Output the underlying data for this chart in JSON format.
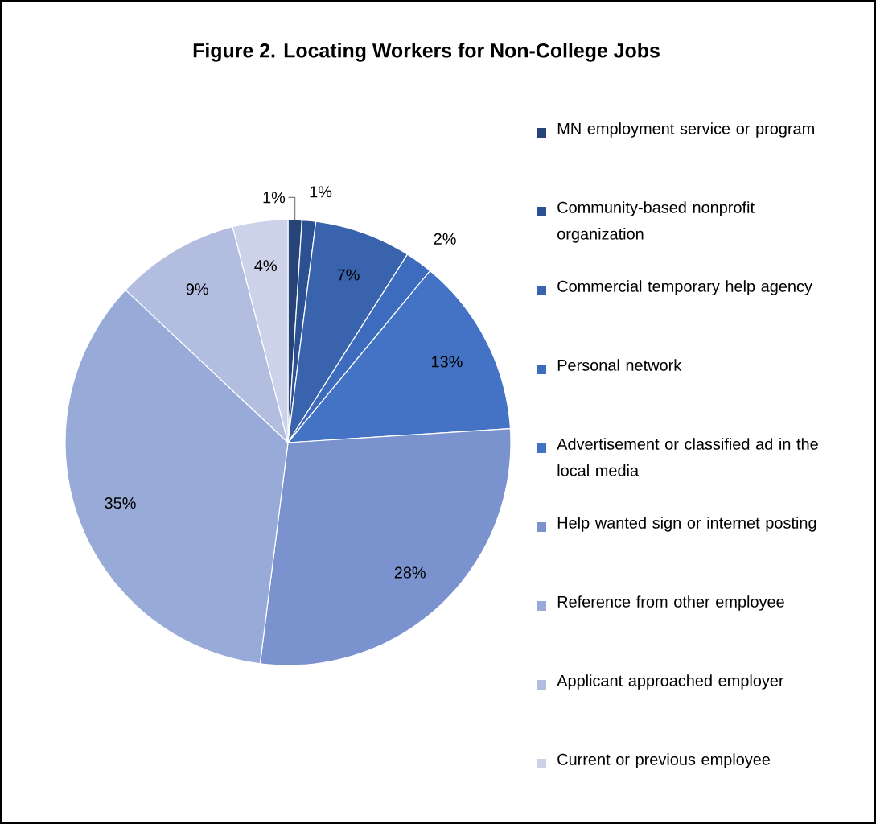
{
  "chart_data": {
    "type": "pie",
    "title": "Figure 2. Locating Workers for Non-College Jobs",
    "categories": [
      "MN employment service or program",
      "Community-based nonprofit organization",
      "Commercial temporary help agency",
      "Personal network",
      "Advertisement or classified ad in the local media",
      "Help wanted sign or internet posting",
      "Reference from other employee",
      "Applicant approached employer",
      "Current or previous employee"
    ],
    "values": [
      1,
      1,
      7,
      2,
      13,
      28,
      35,
      9,
      4
    ],
    "value_labels": [
      "1%",
      "1%",
      "7%",
      "2%",
      "13%",
      "28%",
      "35%",
      "9%",
      "4%"
    ],
    "colors": [
      "#264478",
      "#2c5193",
      "#3a63ad",
      "#3d6bbd",
      "#4472c4",
      "#7a93cf",
      "#98aad7",
      "#b2bde0",
      "#ccd2ea"
    ],
    "legend": "right"
  }
}
